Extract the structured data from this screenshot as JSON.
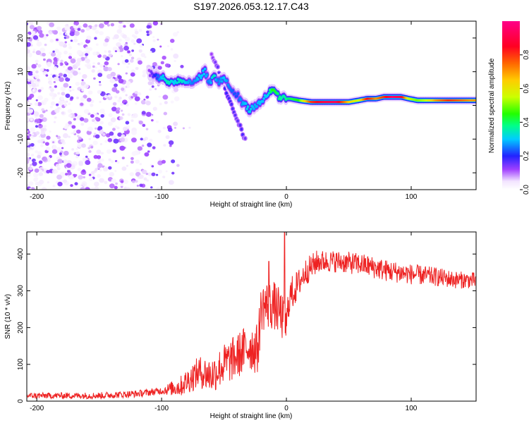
{
  "title": "S197.2026.053.12.17.C43",
  "chart_data": [
    {
      "type": "heatmap",
      "title": "S197.2026.053.12.17.C43",
      "xlabel": "Height of straight line (km)",
      "ylabel": "Frequency (Hz)",
      "xlim": [
        -208,
        152
      ],
      "ylim": [
        -25,
        25
      ],
      "xticks": [
        -200,
        -100,
        0,
        100
      ],
      "yticks": [
        -20,
        -10,
        0,
        10,
        20
      ],
      "colorbar": {
        "label": "Normalized spectral amplitude",
        "range": [
          0,
          1
        ],
        "ticks": [
          0.0,
          0.2,
          0.4,
          0.6,
          0.8
        ],
        "tick_labels": [
          "0.0",
          "0.2",
          "0.4",
          "0.6",
          "0.8"
        ]
      },
      "ridge": [
        {
          "x": -110,
          "f": 10,
          "a": 0.12
        },
        {
          "x": -105,
          "f": 9,
          "a": 0.2
        },
        {
          "x": -100,
          "f": 8,
          "a": 0.3
        },
        {
          "x": -95,
          "f": 7,
          "a": 0.35
        },
        {
          "x": -90,
          "f": 7,
          "a": 0.3
        },
        {
          "x": -85,
          "f": 7.5,
          "a": 0.35
        },
        {
          "x": -80,
          "f": 7,
          "a": 0.3
        },
        {
          "x": -75,
          "f": 7,
          "a": 0.25
        },
        {
          "x": -70,
          "f": 8,
          "a": 0.3
        },
        {
          "x": -65,
          "f": 10,
          "a": 0.3
        },
        {
          "x": -62,
          "f": 6,
          "a": 0.25
        },
        {
          "x": -58,
          "f": 9,
          "a": 0.35
        },
        {
          "x": -55,
          "f": 7,
          "a": 0.25
        },
        {
          "x": -50,
          "f": 8,
          "a": 0.3
        },
        {
          "x": -45,
          "f": 5,
          "a": 0.25
        },
        {
          "x": -40,
          "f": 3,
          "a": 0.22
        },
        {
          "x": -35,
          "f": 1,
          "a": 0.28
        },
        {
          "x": -30,
          "f": -1,
          "a": 0.32
        },
        {
          "x": -25,
          "f": 0,
          "a": 0.28
        },
        {
          "x": -20,
          "f": 1,
          "a": 0.3
        },
        {
          "x": -15,
          "f": 3,
          "a": 0.3
        },
        {
          "x": -11,
          "f": 5,
          "a": 0.45
        },
        {
          "x": -7,
          "f": 3,
          "a": 0.4
        },
        {
          "x": -3,
          "f": 2,
          "a": 0.35
        },
        {
          "x": 3,
          "f": 2,
          "a": 0.4
        },
        {
          "x": 10,
          "f": 1.5,
          "a": 0.45
        },
        {
          "x": 20,
          "f": 1,
          "a": 0.8
        },
        {
          "x": 30,
          "f": 1,
          "a": 0.9
        },
        {
          "x": 40,
          "f": 1,
          "a": 0.92
        },
        {
          "x": 50,
          "f": 1,
          "a": 0.65
        },
        {
          "x": 58,
          "f": 1.5,
          "a": 0.55
        },
        {
          "x": 65,
          "f": 2,
          "a": 0.85
        },
        {
          "x": 72,
          "f": 2,
          "a": 0.7
        },
        {
          "x": 78,
          "f": 2.5,
          "a": 0.8
        },
        {
          "x": 85,
          "f": 2.5,
          "a": 0.95
        },
        {
          "x": 92,
          "f": 2.5,
          "a": 0.9
        },
        {
          "x": 98,
          "f": 2,
          "a": 0.55
        },
        {
          "x": 105,
          "f": 1.5,
          "a": 0.5
        },
        {
          "x": 112,
          "f": 1.5,
          "a": 0.55
        },
        {
          "x": 120,
          "f": 1.5,
          "a": 0.7
        },
        {
          "x": 130,
          "f": 1.5,
          "a": 0.8
        },
        {
          "x": 140,
          "f": 1.5,
          "a": 0.75
        },
        {
          "x": 148,
          "f": 1.5,
          "a": 0.7
        }
      ],
      "secondary_branch": [
        {
          "x": -60,
          "f": 15,
          "a": 0.12
        },
        {
          "x": -55,
          "f": 11,
          "a": 0.16
        },
        {
          "x": -50,
          "f": 6,
          "a": 0.2
        },
        {
          "x": -45,
          "f": 1,
          "a": 0.18
        },
        {
          "x": -40,
          "f": -4,
          "a": 0.16
        },
        {
          "x": -35,
          "f": -8,
          "a": 0.18
        },
        {
          "x": -33,
          "f": -10,
          "a": 0.15
        }
      ]
    },
    {
      "type": "line",
      "xlabel": "Height of straight line (km)",
      "ylabel": "SNR (10 * v/v)",
      "xlim": [
        -208,
        152
      ],
      "ylim": [
        0,
        460
      ],
      "xticks": [
        -200,
        -100,
        0,
        100
      ],
      "yticks": [
        0,
        100,
        200,
        300,
        400
      ],
      "line_color": "#ee2222",
      "trend": [
        {
          "x": -208,
          "y": 15
        },
        {
          "x": -150,
          "y": 15
        },
        {
          "x": -120,
          "y": 20
        },
        {
          "x": -100,
          "y": 28
        },
        {
          "x": -85,
          "y": 40
        },
        {
          "x": -70,
          "y": 80
        },
        {
          "x": -60,
          "y": 70
        },
        {
          "x": -50,
          "y": 100
        },
        {
          "x": -40,
          "y": 120
        },
        {
          "x": -30,
          "y": 150
        },
        {
          "x": -23,
          "y": 140
        },
        {
          "x": -20,
          "y": 260
        },
        {
          "x": -10,
          "y": 260
        },
        {
          "x": -5,
          "y": 240
        },
        {
          "x": 0,
          "y": 200
        },
        {
          "x": 2,
          "y": 280
        },
        {
          "x": 8,
          "y": 310
        },
        {
          "x": 15,
          "y": 350
        },
        {
          "x": 25,
          "y": 380
        },
        {
          "x": 40,
          "y": 380
        },
        {
          "x": 60,
          "y": 372
        },
        {
          "x": 80,
          "y": 355
        },
        {
          "x": 100,
          "y": 345
        },
        {
          "x": 120,
          "y": 338
        },
        {
          "x": 135,
          "y": 330
        },
        {
          "x": 152,
          "y": 328
        }
      ],
      "noise": [
        {
          "x": -208,
          "a": 8
        },
        {
          "x": -100,
          "a": 10
        },
        {
          "x": -75,
          "a": 40
        },
        {
          "x": -45,
          "a": 60
        },
        {
          "x": -22,
          "a": 70
        },
        {
          "x": -20,
          "a": 70
        },
        {
          "x": -5,
          "a": 65
        },
        {
          "x": 10,
          "a": 40
        },
        {
          "x": 30,
          "a": 30
        },
        {
          "x": 80,
          "a": 30
        },
        {
          "x": 152,
          "a": 22
        }
      ],
      "spikes": [
        {
          "x": -1.5,
          "y": 460
        },
        {
          "x": -14,
          "y": 380
        }
      ]
    }
  ]
}
